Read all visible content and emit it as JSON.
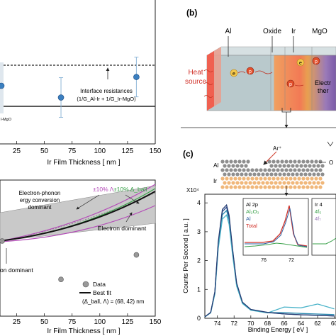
{
  "panel_b": {
    "label": "(b)",
    "layers": [
      "Al",
      "Oxide",
      "Ir",
      "MgO"
    ],
    "heat_source": [
      "Heat",
      "source"
    ],
    "carrier_e": "e",
    "carrier_p": "p",
    "annotation": [
      "Electr",
      "ther"
    ]
  },
  "panel_c": {
    "label": "(c)",
    "layer_al": "Al",
    "layer_ir": "Ir",
    "ion": "Ar⁺",
    "ion_side": "O",
    "ylabel": "Counts Per Second [ a.u. ]",
    "xlabel": "Binding Energy [ eV ]",
    "multiplier": "X10⁴",
    "inset_al": {
      "legend": [
        "Al 2p",
        "Al₂O₃",
        "Al",
        "Total"
      ],
      "ticks": [
        "76",
        "72"
      ]
    },
    "inset_ir": {
      "legend": [
        "Ir 4",
        "4f₅",
        "4f₇"
      ]
    }
  },
  "panel_a_top": {
    "annotation": [
      "Interface resistances",
      "(1/G_Al-Ir + 1/G_Ir-MgO)"
    ],
    "clip_label": "l-MgO",
    "xlabel": "Ir Film Thickness [ nm ]"
  },
  "panel_a_bottom": {
    "labels": {
      "ep_conv": [
        "Electron-phonon",
        "ergy conversion",
        "dominant"
      ],
      "lambda_pm": "±10% Λ",
      "dball_pm": "±10% Δ_ball",
      "electron_dom": "Electron dominant",
      "on_dominant": "on dominant"
    },
    "legend": {
      "data": "Data",
      "fit": "Best fit",
      "params": "(Δ_ball, Λ) = (68, 42) nm"
    },
    "xlabel": "Ir Film Thickness [ nm ]"
  },
  "chart_data": [
    {
      "type": "scatter",
      "x_ticks": [
        "25",
        "50",
        "75",
        "100",
        "125",
        "150"
      ],
      "points": [
        {
          "x": 65,
          "y": 0.43
        },
        {
          "x": 133,
          "y": 0.62
        }
      ],
      "xlim": [
        10,
        150
      ]
    },
    {
      "type": "line",
      "x_ticks": [
        "25",
        "50",
        "75",
        "100",
        "125",
        "150"
      ],
      "data_points": [
        {
          "x": 65,
          "y": 0.36
        },
        {
          "x": 133,
          "y": 0.6
        }
      ],
      "xlim": [
        10,
        150
      ]
    },
    {
      "type": "line",
      "x_ticks": [
        "74",
        "72",
        "70",
        "68",
        "66",
        "64",
        "62",
        "60"
      ],
      "y_ticks": [
        "0",
        "1",
        "2",
        "3",
        "4"
      ],
      "ylim": [
        0,
        4.3
      ],
      "xlim": [
        75.5,
        59.8
      ],
      "colors": [
        "#2f4f8f",
        "#2a8ab0",
        "#4ab3c9",
        "#243b72"
      ]
    }
  ]
}
